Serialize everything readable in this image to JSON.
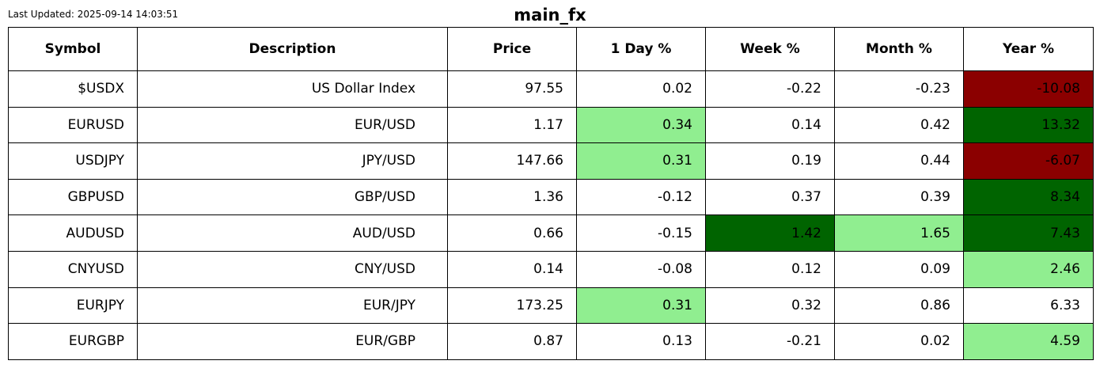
{
  "header": {
    "updated": "Last Updated: 2025-09-14 14:03:51",
    "title": "main_fx"
  },
  "colors": {
    "strong_positive": "#006400",
    "positive": "#90EE90",
    "strong_negative": "#8B0000",
    "neutral": "#FFFFFF"
  },
  "chart_data": {
    "type": "table",
    "title": "main_fx",
    "columns": [
      "Symbol",
      "Description",
      "Price",
      "1 Day %",
      "Week %",
      "Month %",
      "Year %"
    ],
    "rows": [
      {
        "cells": [
          "$USDX",
          "US Dollar Index",
          "97.55",
          "0.02",
          "-0.22",
          "-0.23",
          "-10.08"
        ],
        "shade": [
          "",
          "",
          "",
          "",
          "",
          "",
          "strong_negative"
        ]
      },
      {
        "cells": [
          "EURUSD",
          "EUR/USD",
          "1.17",
          "0.34",
          "0.14",
          "0.42",
          "13.32"
        ],
        "shade": [
          "",
          "",
          "",
          "positive",
          "",
          "",
          "strong_positive"
        ]
      },
      {
        "cells": [
          "USDJPY",
          "JPY/USD",
          "147.66",
          "0.31",
          "0.19",
          "0.44",
          "-6.07"
        ],
        "shade": [
          "",
          "",
          "",
          "positive",
          "",
          "",
          "strong_negative"
        ]
      },
      {
        "cells": [
          "GBPUSD",
          "GBP/USD",
          "1.36",
          "-0.12",
          "0.37",
          "0.39",
          "8.34"
        ],
        "shade": [
          "",
          "",
          "",
          "",
          "",
          "",
          "strong_positive"
        ]
      },
      {
        "cells": [
          "AUDUSD",
          "AUD/USD",
          "0.66",
          "-0.15",
          "1.42",
          "1.65",
          "7.43"
        ],
        "shade": [
          "",
          "",
          "",
          "",
          "strong_positive",
          "positive",
          "strong_positive"
        ]
      },
      {
        "cells": [
          "CNYUSD",
          "CNY/USD",
          "0.14",
          "-0.08",
          "0.12",
          "0.09",
          "2.46"
        ],
        "shade": [
          "",
          "",
          "",
          "",
          "",
          "",
          "positive"
        ]
      },
      {
        "cells": [
          "EURJPY",
          "EUR/JPY",
          "173.25",
          "0.31",
          "0.32",
          "0.86",
          "6.33"
        ],
        "shade": [
          "",
          "",
          "",
          "positive",
          "",
          "",
          ""
        ]
      },
      {
        "cells": [
          "EURGBP",
          "EUR/GBP",
          "0.87",
          "0.13",
          "-0.21",
          "0.02",
          "4.59"
        ],
        "shade": [
          "",
          "",
          "",
          "",
          "",
          "",
          "positive"
        ]
      }
    ]
  }
}
